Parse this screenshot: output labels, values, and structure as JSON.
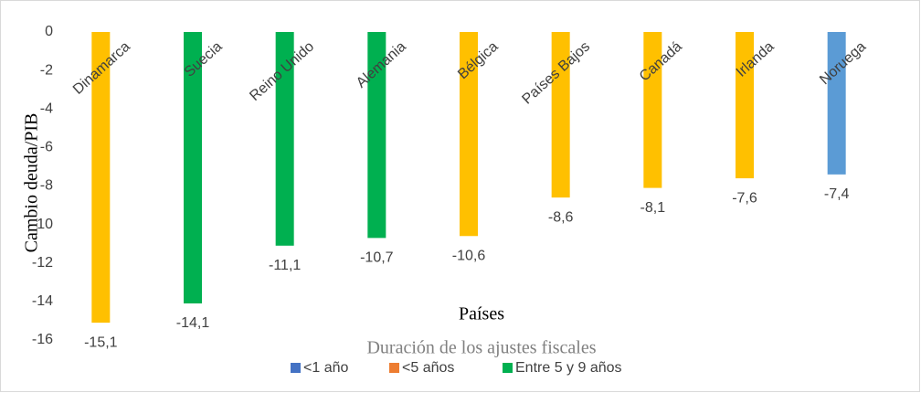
{
  "chart_data": {
    "type": "bar",
    "categories": [
      "Dinamarca",
      "Suecia",
      "Reino Unido",
      "Alemania",
      "Bélgica",
      "Países Bajos",
      "Canadá",
      "Irlanda",
      "Noruega"
    ],
    "values": [
      -15.1,
      -14.1,
      -11.1,
      -10.7,
      -10.6,
      -8.6,
      -8.1,
      -7.6,
      -7.4
    ],
    "value_labels": [
      "-15,1",
      "-14,1",
      "-11,1",
      "-10,7",
      "-10,6",
      "-8,6",
      "-8,1",
      "-7,6",
      "-7,4"
    ],
    "colors": [
      "#ffc000",
      "#00b050",
      "#00b050",
      "#00b050",
      "#ffc000",
      "#ffc000",
      "#ffc000",
      "#ffc000",
      "#5b9bd5"
    ],
    "x_label": "Países",
    "y_label": "Cambio deuda/PIB",
    "legend_title": "Duración de los ajustes fiscales",
    "legend": [
      {
        "name": "<1 año",
        "color": "#4472c4"
      },
      {
        "name": "<5 años",
        "color": "#ed7d31"
      },
      {
        "name": "Entre 5 y 9 años",
        "color": "#00b050"
      }
    ],
    "ylim": [
      -16,
      0
    ],
    "yticks": [
      0,
      -2,
      -4,
      -6,
      -8,
      -10,
      -12,
      -14,
      -16
    ]
  }
}
